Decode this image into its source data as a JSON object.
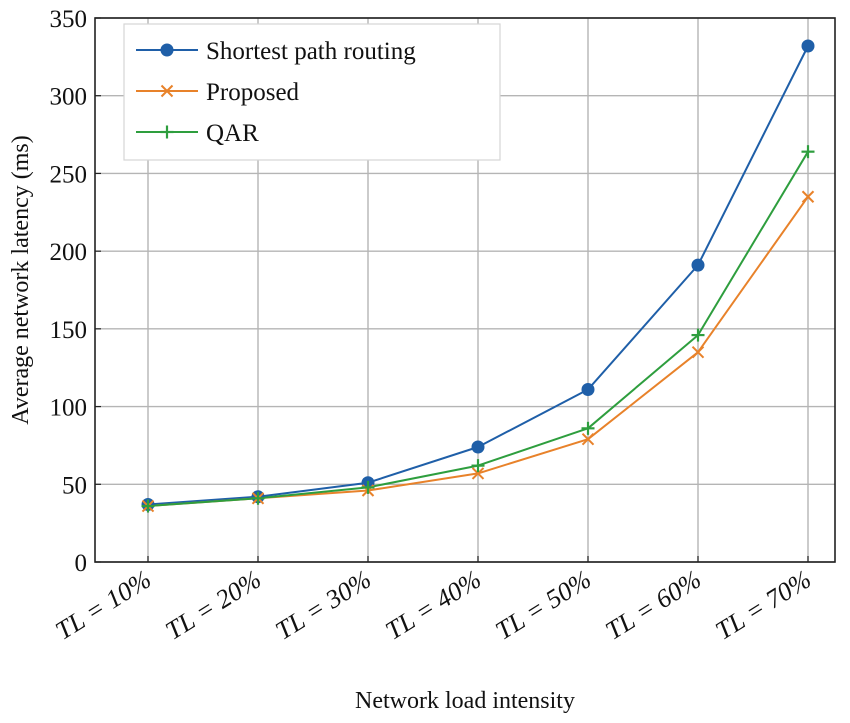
{
  "chart_data": {
    "type": "line",
    "title": "",
    "xlabel": "Network load intensity",
    "ylabel": "Average network latency (ms)",
    "categories": [
      "TL = 10%",
      "TL = 20%",
      "TL = 30%",
      "TL = 40%",
      "TL = 50%",
      "TL = 60%",
      "TL = 70%"
    ],
    "ylim": [
      0,
      350
    ],
    "yticks": [
      0,
      50,
      100,
      150,
      200,
      250,
      300,
      350
    ],
    "grid": true,
    "legend_position": "top-left",
    "series": [
      {
        "name": "Shortest path routing",
        "color": "#1f5fa8",
        "marker": "circle",
        "values": [
          37,
          42,
          51,
          74,
          111,
          191,
          332
        ]
      },
      {
        "name": "Proposed",
        "color": "#e8822a",
        "marker": "x",
        "values": [
          36,
          41,
          46,
          57,
          79,
          135,
          235
        ]
      },
      {
        "name": "QAR",
        "color": "#2e9e3e",
        "marker": "plus",
        "values": [
          36,
          41,
          48,
          62,
          86,
          146,
          264
        ]
      }
    ]
  }
}
